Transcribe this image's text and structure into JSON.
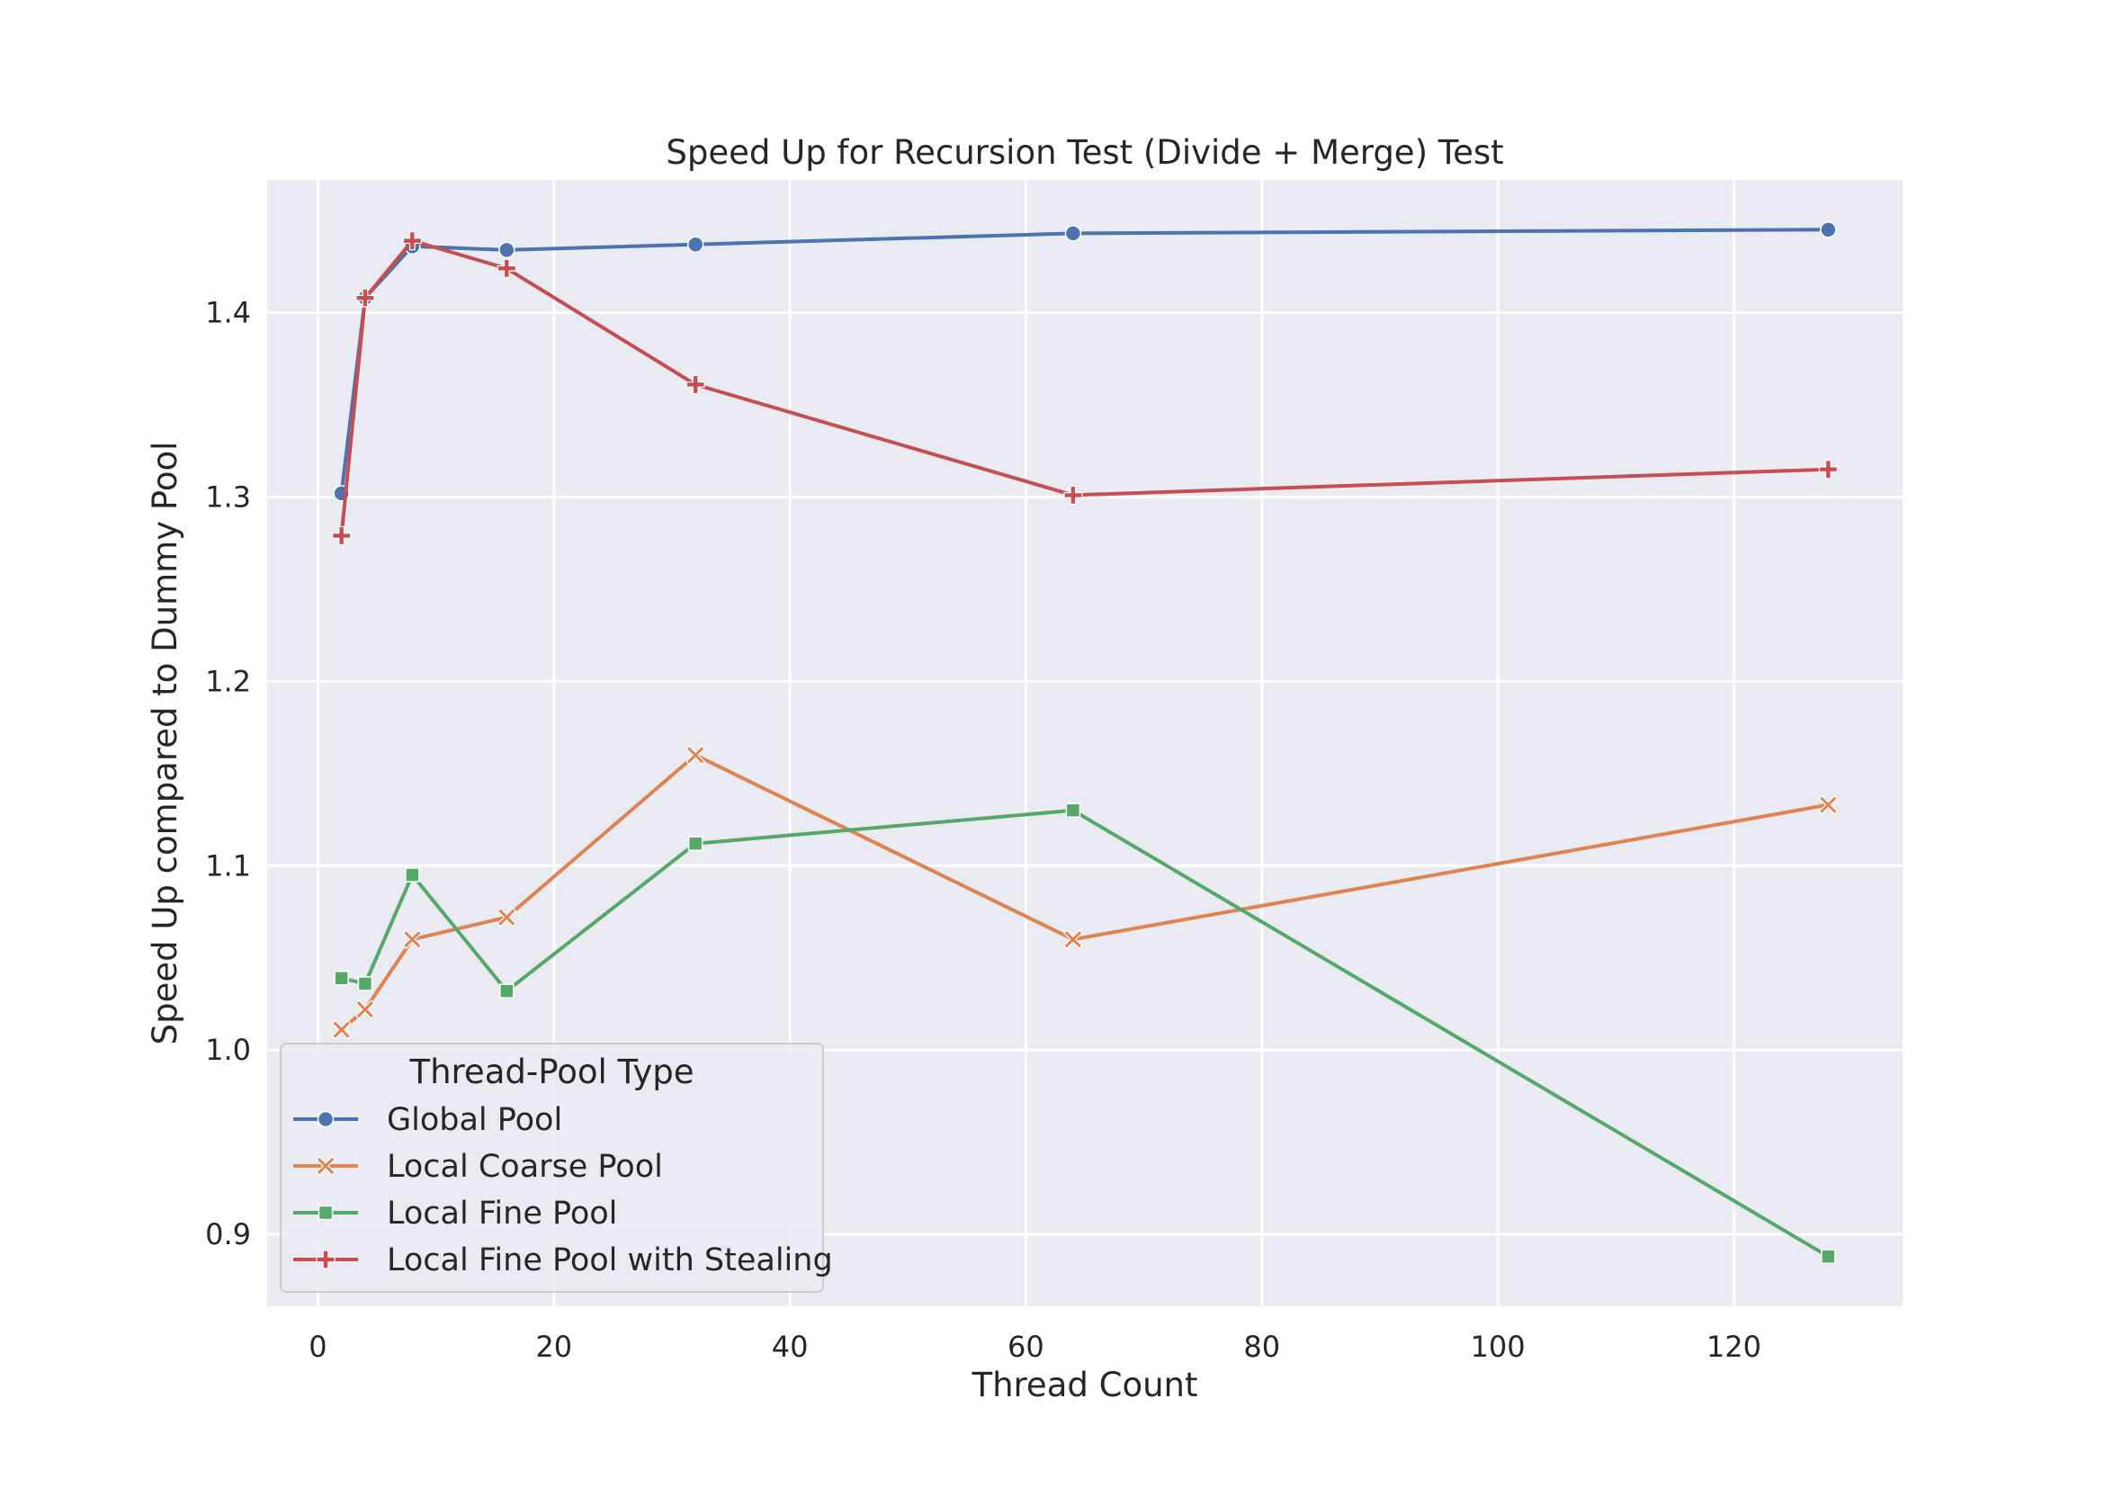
{
  "chart_data": {
    "type": "line",
    "title": "Speed Up for Recursion Test (Divide + Merge) Test",
    "xlabel": "Thread Count",
    "ylabel": "Speed Up compared to Dummy Pool",
    "xlim": [
      -4.3,
      134.3
    ],
    "ylim": [
      0.861,
      1.472
    ],
    "xticks": [
      0,
      20,
      40,
      60,
      80,
      100,
      120
    ],
    "yticks": [
      0.9,
      1.0,
      1.1,
      1.2,
      1.3,
      1.4
    ],
    "xtick_labels": [
      "0",
      "20",
      "40",
      "60",
      "80",
      "100",
      "120"
    ],
    "ytick_labels": [
      "0.9",
      "1.0",
      "1.1",
      "1.2",
      "1.3",
      "1.4"
    ],
    "grid": true,
    "legend": {
      "title": "Thread-Pool Type",
      "placement": "lower-left"
    },
    "x": [
      2,
      4,
      8,
      16,
      32,
      64,
      128
    ],
    "series": [
      {
        "name": "Global Pool",
        "color": "#4c72b0",
        "marker": "circle",
        "values": [
          1.302,
          1.408,
          1.436,
          1.434,
          1.437,
          1.443,
          1.445
        ]
      },
      {
        "name": "Local Coarse Pool",
        "color": "#dd8452",
        "marker": "x",
        "values": [
          1.011,
          1.022,
          1.06,
          1.072,
          1.16,
          1.06,
          1.133
        ]
      },
      {
        "name": "Local Fine Pool",
        "color": "#55a868",
        "marker": "square",
        "values": [
          1.039,
          1.036,
          1.095,
          1.032,
          1.112,
          1.13,
          0.888
        ]
      },
      {
        "name": "Local Fine Pool with Stealing",
        "color": "#c44e52",
        "marker": "plus",
        "values": [
          1.279,
          1.408,
          1.439,
          1.424,
          1.361,
          1.301,
          1.315
        ]
      }
    ]
  },
  "colors": {
    "plot_background": "#eaeaf2",
    "grid": "#ffffff",
    "text": "#262626"
  }
}
